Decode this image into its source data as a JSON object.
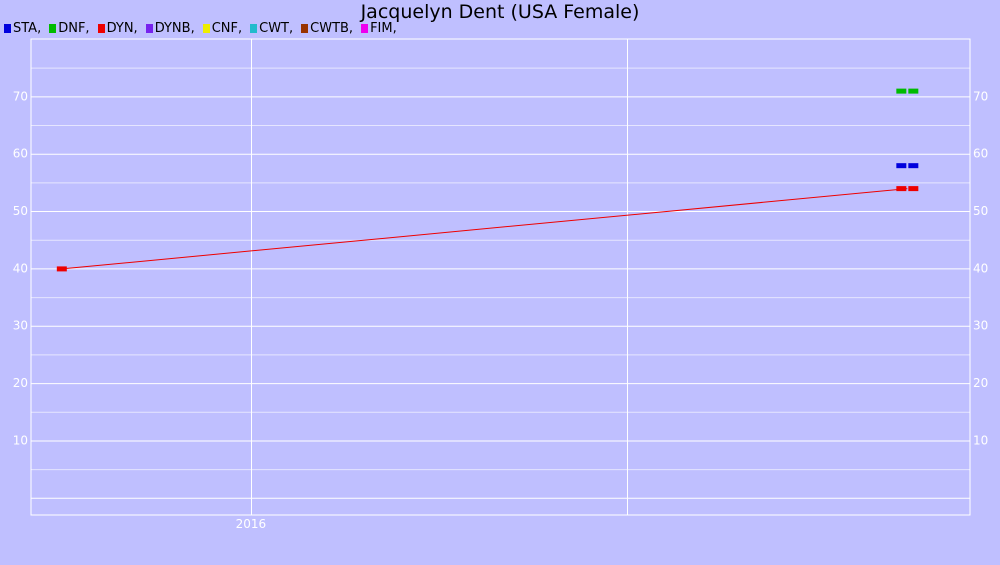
{
  "title": "Jacquelyn Dent (USA Female)",
  "legend": [
    {
      "label": "STA,",
      "color": "#0000DD"
    },
    {
      "label": "DNF,",
      "color": "#00BB00"
    },
    {
      "label": "DYN,",
      "color": "#EE0000"
    },
    {
      "label": "DYNB,",
      "color": "#7722EE"
    },
    {
      "label": "CNF,",
      "color": "#EEEE00"
    },
    {
      "label": "CWT,",
      "color": "#22BBCC"
    },
    {
      "label": "CWTB,",
      "color": "#993300"
    },
    {
      "label": "FIM,",
      "color": "#EE00EE"
    }
  ],
  "chart_data": {
    "type": "line",
    "title": "Jacquelyn Dent (USA Female)",
    "xlabel": "",
    "ylabel": "",
    "x_tick_labels": [
      "2016"
    ],
    "y_ticks": [
      10,
      20,
      30,
      40,
      50,
      60,
      70
    ],
    "ylim": [
      -3,
      80
    ],
    "grid": true,
    "legend_position": "top-left",
    "series": [
      {
        "name": "STA",
        "color": "#0000DD",
        "points": [
          {
            "x": "2017-10",
            "y": 58
          }
        ]
      },
      {
        "name": "DNF",
        "color": "#00BB00",
        "points": [
          {
            "x": "2017-10",
            "y": 71
          }
        ]
      },
      {
        "name": "DYN",
        "color": "#EE0000",
        "points": [
          {
            "x": "2015-07",
            "y": 40
          },
          {
            "x": "2017-10",
            "y": 54
          }
        ]
      }
    ]
  }
}
